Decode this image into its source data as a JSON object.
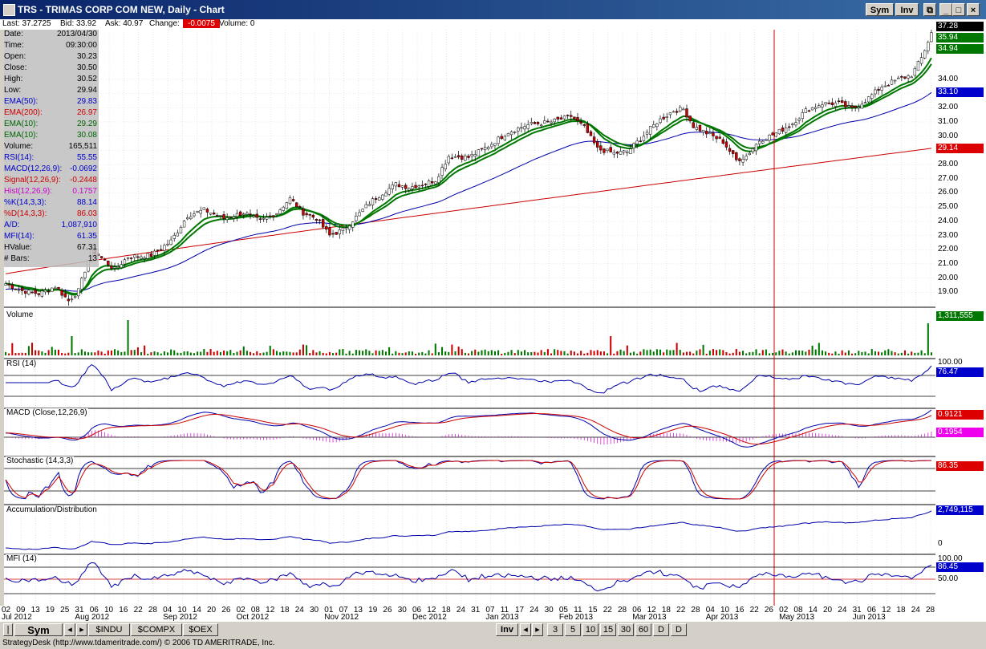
{
  "window": {
    "title": "TRS - TRIMAS CORP COM NEW, Daily - Chart",
    "sym_btn": "Sym",
    "inv_btn": "Inv"
  },
  "quote": {
    "last": "Last: 37.2725",
    "bid": "Bid: 33.92",
    "ask": "Ask: 40.97",
    "change_label": "Change:",
    "change_value": "-0.0075",
    "volume": "Volume: 0"
  },
  "data_panel": [
    {
      "k": "Date:",
      "v": "2013/04/30",
      "c": "#000"
    },
    {
      "k": "Time:",
      "v": "09:30:00",
      "c": "#000"
    },
    {
      "k": "Open:",
      "v": "30.23",
      "c": "#000"
    },
    {
      "k": "Close:",
      "v": "30.50",
      "c": "#000"
    },
    {
      "k": "High:",
      "v": "30.52",
      "c": "#000"
    },
    {
      "k": "Low:",
      "v": "29.94",
      "c": "#000"
    },
    {
      "k": "EMA(50):",
      "v": "29.83",
      "c": "#0000cc"
    },
    {
      "k": "EMA(200):",
      "v": "26.97",
      "c": "#cc0000"
    },
    {
      "k": "EMA(10):",
      "v": "29.29",
      "c": "#006600"
    },
    {
      "k": "EMA(10):",
      "v": "30.08",
      "c": "#006600"
    },
    {
      "k": "Volume:",
      "v": "165,511",
      "c": "#000"
    },
    {
      "k": "RSI(14):",
      "v": "55.55",
      "c": "#0000cc"
    },
    {
      "k": "MACD(12,26,9):",
      "v": "-0.0692",
      "c": "#0000cc"
    },
    {
      "k": "Signal(12,26,9):",
      "v": "-0.2448",
      "c": "#cc0000"
    },
    {
      "k": "Hist(12,26,9):",
      "v": "0.1757",
      "c": "#cc00cc"
    },
    {
      "k": "%K(14,3,3):",
      "v": "88.14",
      "c": "#0000cc"
    },
    {
      "k": "%D(14,3,3):",
      "v": "86.03",
      "c": "#cc0000"
    },
    {
      "k": "A/D:",
      "v": "1,087,910",
      "c": "#0000cc"
    },
    {
      "k": "MFI(14):",
      "v": "61.35",
      "c": "#0000cc"
    },
    {
      "k": "HValue:",
      "v": "67.31",
      "c": "#000"
    },
    {
      "k": "# Bars:",
      "v": "13",
      "c": "#000"
    }
  ],
  "price_axis": [
    "19.00",
    "20.00",
    "21.00",
    "22.00",
    "23.00",
    "24.00",
    "25.00",
    "26.00",
    "27.00",
    "28.00",
    "29.00",
    "30.00",
    "31.00",
    "32.00",
    "33.00",
    "34.00"
  ],
  "price_boxes": [
    {
      "text": "37.28",
      "bg": "#000000",
      "color": "#ffffff",
      "value": 37.28
    },
    {
      "text": "35.94",
      "bg": "#007700",
      "color": "#ffffff",
      "value": 35.94
    },
    {
      "text": "34.94",
      "bg": "#007700",
      "color": "#ffffff",
      "value": 34.94
    },
    {
      "text": "33.10",
      "bg": "#0000cc",
      "color": "#ffffff",
      "value": 33.1
    },
    {
      "text": "29.14",
      "bg": "#dd0000",
      "color": "#ffffff",
      "value": 29.14
    }
  ],
  "panels": {
    "volume": {
      "label": "Volume",
      "box": "1,311,555",
      "box_bg": "#007700"
    },
    "rsi": {
      "label": "RSI (14)",
      "top": "100.00",
      "box": "76.47",
      "box_bg": "#0000cc"
    },
    "macd": {
      "label": "MACD (Close,12,26,9)",
      "box1": "0.9121",
      "box1_bg": "#dd0000",
      "box2": "0.1954",
      "box2_bg": "#ee00ee"
    },
    "stoch": {
      "label": "Stochastic (14,3,3)",
      "box": "86.35",
      "box_bg": "#dd0000"
    },
    "ad": {
      "label": "Accumulation/Distribution",
      "box": "2,749,115",
      "box_bg": "#0000cc",
      "zero": "0"
    },
    "mfi": {
      "label": "MFI (14)",
      "top": "100.00",
      "box": "86.45",
      "box_bg": "#0000cc",
      "mid": "50.00"
    }
  },
  "x_dates": [
    "02",
    "09",
    "13",
    "19",
    "25",
    "31",
    "06",
    "10",
    "16",
    "22",
    "28",
    "04",
    "10",
    "14",
    "20",
    "26",
    "02",
    "08",
    "12",
    "18",
    "24",
    "30",
    "01",
    "07",
    "13",
    "19",
    "26",
    "30",
    "06",
    "12",
    "18",
    "24",
    "31",
    "07",
    "11",
    "17",
    "24",
    "30",
    "05",
    "11",
    "15",
    "22",
    "28",
    "06",
    "12",
    "18",
    "22",
    "28",
    "04",
    "10",
    "16",
    "22",
    "26",
    "02",
    "08",
    "14",
    "20",
    "24",
    "31",
    "06",
    "12",
    "18",
    "24",
    "28"
  ],
  "x_months": [
    "Jul 2012",
    "Aug 2012",
    "Sep 2012",
    "Oct 2012",
    "Nov 2012",
    "Dec 2012",
    "Jan 2013",
    "Feb 2013",
    "Mar 2013",
    "Apr 2013",
    "May 2013",
    "Jun 2013"
  ],
  "bottom": {
    "sym": "Sym",
    "tabs": [
      "$INDU",
      "$COMPX",
      "$OEX"
    ],
    "inv": "Inv",
    "periods": [
      "3",
      "5",
      "10",
      "15",
      "30",
      "60",
      "D",
      "D"
    ]
  },
  "status": "StrategyDesk (http://www.tdameritrade.com/) © 2006 TD AMERITRADE, Inc.",
  "colors": {
    "up": "#ffffff",
    "down": "#cc0000",
    "ema10a": "#007700",
    "ema10b": "#007700",
    "ema50": "#0000aa",
    "ema200": "#cc0000",
    "cursor": "#cc0000"
  },
  "chart_data": {
    "type": "candlestick",
    "symbol": "TRS",
    "price_close_anchors": [
      {
        "x": 0,
        "v": 19.6
      },
      {
        "x": 5,
        "v": 19.1
      },
      {
        "x": 10,
        "v": 18.9
      },
      {
        "x": 15,
        "v": 19.4
      },
      {
        "x": 19,
        "v": 18.4
      },
      {
        "x": 22,
        "v": 19.1
      },
      {
        "x": 26,
        "v": 22.0
      },
      {
        "x": 30,
        "v": 21.2
      },
      {
        "x": 33,
        "v": 20.6
      },
      {
        "x": 37,
        "v": 21.5
      },
      {
        "x": 44,
        "v": 21.6
      },
      {
        "x": 50,
        "v": 22.6
      },
      {
        "x": 55,
        "v": 24.4
      },
      {
        "x": 60,
        "v": 24.8
      },
      {
        "x": 66,
        "v": 24.2
      },
      {
        "x": 72,
        "v": 24.6
      },
      {
        "x": 77,
        "v": 24.0
      },
      {
        "x": 82,
        "v": 24.6
      },
      {
        "x": 86,
        "v": 25.6
      },
      {
        "x": 90,
        "v": 24.6
      },
      {
        "x": 94,
        "v": 24.2
      },
      {
        "x": 98,
        "v": 23.0
      },
      {
        "x": 102,
        "v": 23.4
      },
      {
        "x": 106,
        "v": 24.3
      },
      {
        "x": 110,
        "v": 25.3
      },
      {
        "x": 114,
        "v": 26.0
      },
      {
        "x": 118,
        "v": 26.6
      },
      {
        "x": 122,
        "v": 26.4
      },
      {
        "x": 126,
        "v": 26.6
      },
      {
        "x": 130,
        "v": 26.9
      },
      {
        "x": 134,
        "v": 28.6
      },
      {
        "x": 140,
        "v": 28.5
      },
      {
        "x": 146,
        "v": 29.3
      },
      {
        "x": 152,
        "v": 30.3
      },
      {
        "x": 158,
        "v": 30.8
      },
      {
        "x": 165,
        "v": 31.0
      },
      {
        "x": 171,
        "v": 31.4
      },
      {
        "x": 175,
        "v": 30.6
      },
      {
        "x": 179,
        "v": 29.1
      },
      {
        "x": 184,
        "v": 28.8
      },
      {
        "x": 188,
        "v": 28.9
      },
      {
        "x": 192,
        "v": 29.8
      },
      {
        "x": 197,
        "v": 31.0
      },
      {
        "x": 202,
        "v": 31.8
      },
      {
        "x": 205,
        "v": 31.9
      },
      {
        "x": 208,
        "v": 30.7
      },
      {
        "x": 213,
        "v": 30.1
      },
      {
        "x": 217,
        "v": 29.6
      },
      {
        "x": 221,
        "v": 28.3
      },
      {
        "x": 224,
        "v": 28.6
      },
      {
        "x": 228,
        "v": 29.7
      },
      {
        "x": 233,
        "v": 30.2
      },
      {
        "x": 238,
        "v": 30.9
      },
      {
        "x": 242,
        "v": 31.8
      },
      {
        "x": 247,
        "v": 32.3
      },
      {
        "x": 252,
        "v": 32.3
      },
      {
        "x": 256,
        "v": 31.9
      },
      {
        "x": 260,
        "v": 32.5
      },
      {
        "x": 265,
        "v": 33.5
      },
      {
        "x": 270,
        "v": 34.0
      },
      {
        "x": 274,
        "v": 34.3
      },
      {
        "x": 277,
        "v": 35.5
      },
      {
        "x": 280,
        "v": 37.27
      }
    ],
    "ema200": {
      "start": 20.3,
      "end": 29.14
    },
    "cursor_date": "2013/04/30",
    "ylim": [
      18,
      37.5
    ]
  }
}
